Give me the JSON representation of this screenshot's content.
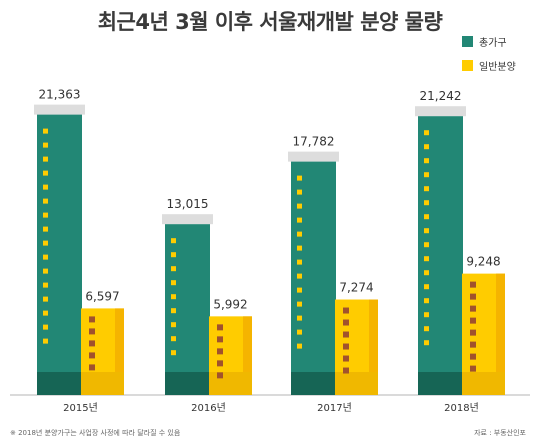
{
  "title": "최근4년 3월 이후 서울재개발 분양 물량",
  "legend": [
    {
      "label": "총가구",
      "color": "#228775"
    },
    {
      "label": "일반분양",
      "color": "#FFCC00"
    }
  ],
  "note": "※ 2018년 분양가구는 사업장 사정에 따라 달라질 수 있음",
  "source": "자료 : 부동산인포",
  "chart_data": {
    "type": "bar",
    "title": "최근4년 3월 이후 서울재개발 분양 물량",
    "categories": [
      "2015년",
      "2016년",
      "2017년",
      "2018년"
    ],
    "series": [
      {
        "name": "총가구",
        "values": [
          21363,
          13015,
          17782,
          21242
        ],
        "labels": [
          "21,363",
          "13,015",
          "17,782",
          "21,242"
        ],
        "color": "#228775"
      },
      {
        "name": "일반분양",
        "values": [
          6597,
          5992,
          7274,
          9248
        ],
        "labels": [
          "6,597",
          "5,992",
          "7,274",
          "9,248"
        ],
        "color": "#FFCC00"
      }
    ],
    "ylim": [
      0,
      24000
    ],
    "grid": false,
    "legend_position": "top-right"
  }
}
